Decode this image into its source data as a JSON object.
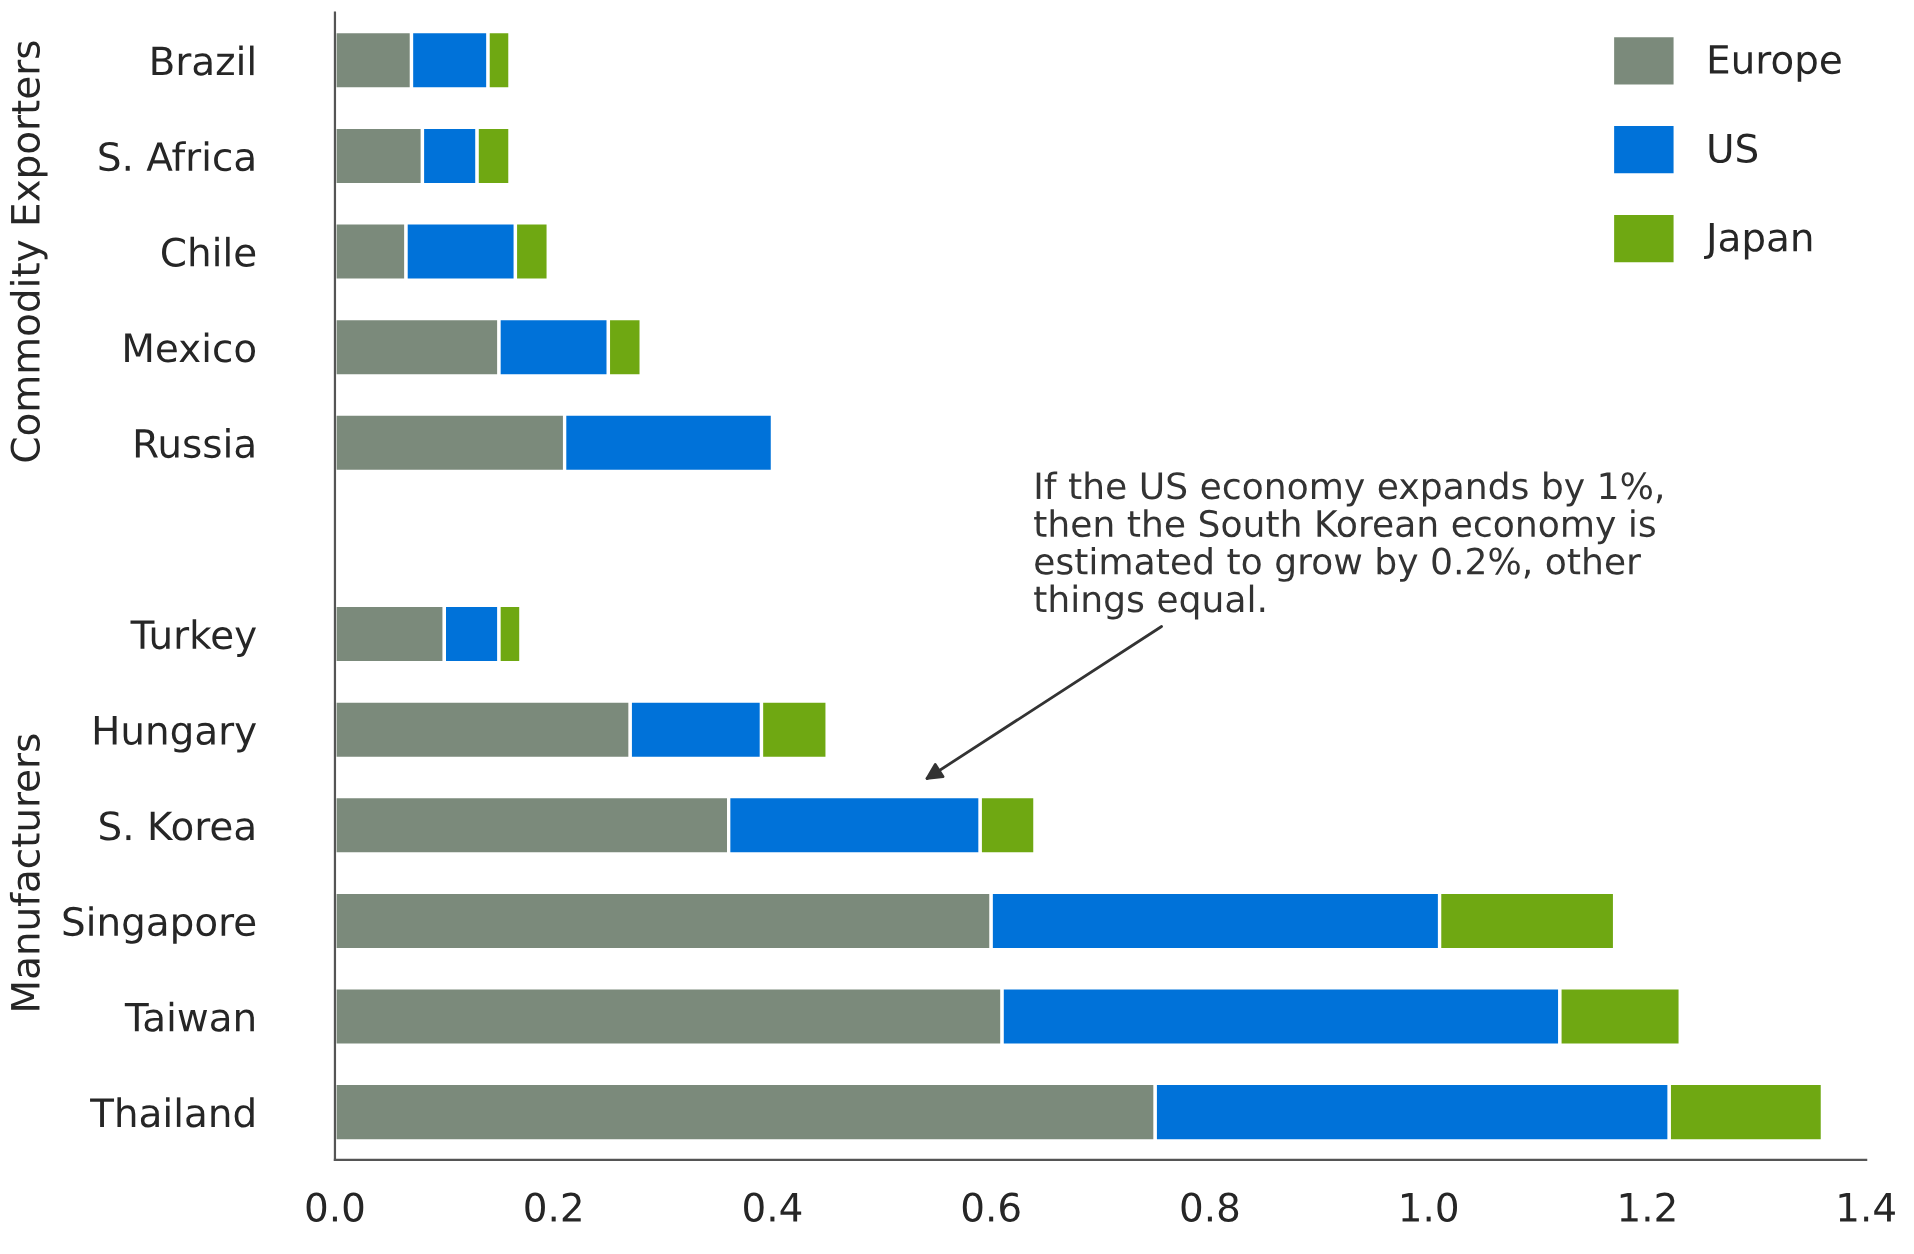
{
  "chart_data": {
    "type": "bar",
    "orientation": "horizontal",
    "stacked": true,
    "categories": [
      "Brazil",
      "S. Africa",
      "Chile",
      "Mexico",
      "Russia",
      null,
      "Turkey",
      "Hungary",
      "S. Korea",
      "Singapore",
      "Taiwan",
      "Thailand"
    ],
    "series": [
      {
        "name": "Europe",
        "color": "#7b8a7b",
        "values": [
          0.07,
          0.08,
          0.065,
          0.15,
          0.21,
          null,
          0.1,
          0.27,
          0.36,
          0.6,
          0.61,
          0.75
        ]
      },
      {
        "name": "US",
        "color": "#0072d9",
        "values": [
          0.07,
          0.05,
          0.1,
          0.1,
          0.19,
          null,
          0.05,
          0.12,
          0.23,
          0.41,
          0.51,
          0.47
        ]
      },
      {
        "name": "Japan",
        "color": "#6fa812",
        "values": [
          0.02,
          0.03,
          0.03,
          0.03,
          null,
          null,
          0.02,
          0.06,
          0.05,
          0.16,
          0.11,
          0.14
        ]
      }
    ],
    "xlim": [
      0,
      1.4
    ],
    "xticks": [
      {
        "value": 0,
        "label": "0.0"
      },
      {
        "value": 0.2,
        "label": "0.2"
      },
      {
        "value": 0.4,
        "label": "0.4"
      },
      {
        "value": 0.6,
        "label": "0.6"
      },
      {
        "value": 0.8,
        "label": "0.8"
      },
      {
        "value": 1.0,
        "label": "1.0"
      },
      {
        "value": 1.2,
        "label": "1.2"
      },
      {
        "value": 1.4,
        "label": "1.4"
      }
    ],
    "annotations": [
      "If the US economy expands by 1%,\nthen the South Korean economy is\nestimated to grow by 0.2%, other\nthings equal.",
      "Commodity Exporters",
      "Manufacturers"
    ],
    "legend": "top right",
    "grid": false
  }
}
